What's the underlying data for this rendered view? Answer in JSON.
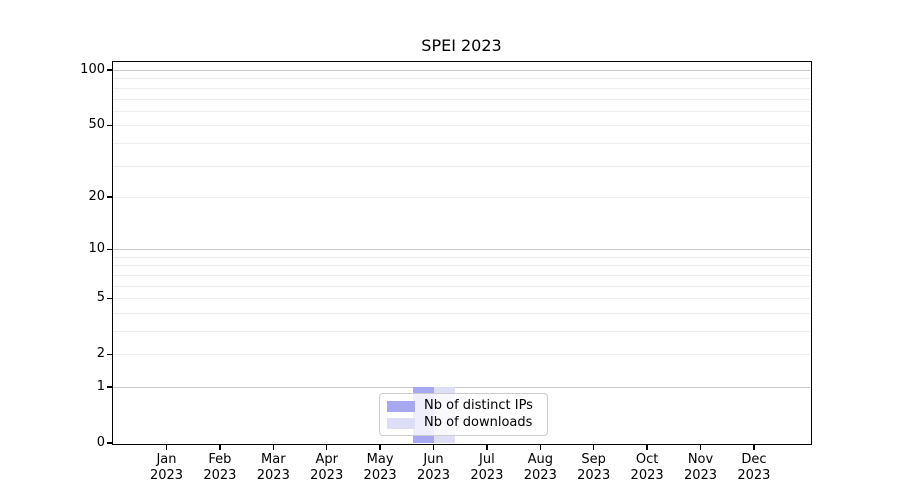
{
  "chart_data": {
    "type": "bar",
    "title": "SPEI 2023",
    "xlabel": "",
    "ylabel": "",
    "categories": [
      "Jan",
      "Feb",
      "Mar",
      "Apr",
      "May",
      "Jun",
      "Jul",
      "Aug",
      "Sep",
      "Oct",
      "Nov",
      "Dec"
    ],
    "x_tick_year": "2023",
    "series": [
      {
        "name": "Nb of distinct IPs",
        "color": "#a8a8f0",
        "values": [
          0,
          0,
          0,
          0,
          0,
          1,
          0,
          0,
          0,
          0,
          0,
          0
        ]
      },
      {
        "name": "Nb of downloads",
        "color": "#dedef6",
        "values": [
          0,
          0,
          0,
          0,
          0,
          1,
          0,
          0,
          0,
          0,
          0,
          0
        ]
      }
    ],
    "yscale": "log1p",
    "ylim": [
      0,
      110
    ],
    "y_tick_values": [
      0,
      1,
      2,
      5,
      10,
      20,
      50,
      100
    ],
    "y_major_grid": [
      1,
      10,
      100
    ],
    "y_minor_grid": [
      2,
      3,
      4,
      5,
      6,
      7,
      8,
      9,
      20,
      30,
      40,
      50,
      60,
      70,
      80,
      90
    ],
    "grid": "horizontal",
    "legend_position": "lower center",
    "colors": {
      "spine": "#000000",
      "major_grid": "#c6c6c6",
      "minor_grid": "#ececec",
      "background": "#ffffff",
      "legend_border": "#cccccc"
    }
  }
}
